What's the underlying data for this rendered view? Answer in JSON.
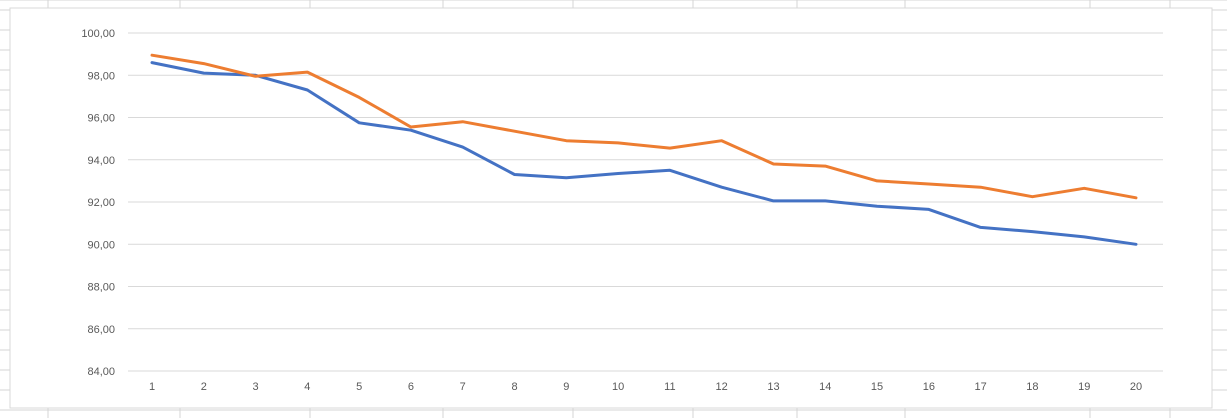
{
  "colors": {
    "series_blue": "#4472C4",
    "series_orange": "#ED7D31",
    "gridline": "#D9D9D9",
    "cell_border": "#D4D4D4",
    "tick_text": "#595959"
  },
  "chart_data": {
    "type": "line",
    "title": "",
    "xlabel": "",
    "ylabel": "",
    "grid": true,
    "legend": "none",
    "x": [
      "1",
      "2",
      "3",
      "4",
      "5",
      "6",
      "7",
      "8",
      "9",
      "10",
      "11",
      "12",
      "13",
      "14",
      "15",
      "16",
      "17",
      "18",
      "19",
      "20"
    ],
    "ylim": [
      84,
      100
    ],
    "yticks": [
      "84,00",
      "86,00",
      "88,00",
      "90,00",
      "92,00",
      "94,00",
      "96,00",
      "98,00",
      "100,00"
    ],
    "series": [
      {
        "color": "#4472C4",
        "values": [
          98.6,
          98.1,
          98.0,
          97.3,
          95.75,
          95.4,
          94.6,
          93.3,
          93.15,
          93.35,
          93.5,
          92.7,
          92.05,
          92.05,
          91.8,
          91.65,
          90.8,
          90.6,
          90.35,
          90.0
        ]
      },
      {
        "color": "#ED7D31",
        "values": [
          98.95,
          98.55,
          97.95,
          98.15,
          96.95,
          95.55,
          95.8,
          95.35,
          94.9,
          94.8,
          94.55,
          94.9,
          93.8,
          93.7,
          93.0,
          92.85,
          92.7,
          92.25,
          92.65,
          92.2
        ]
      }
    ]
  }
}
